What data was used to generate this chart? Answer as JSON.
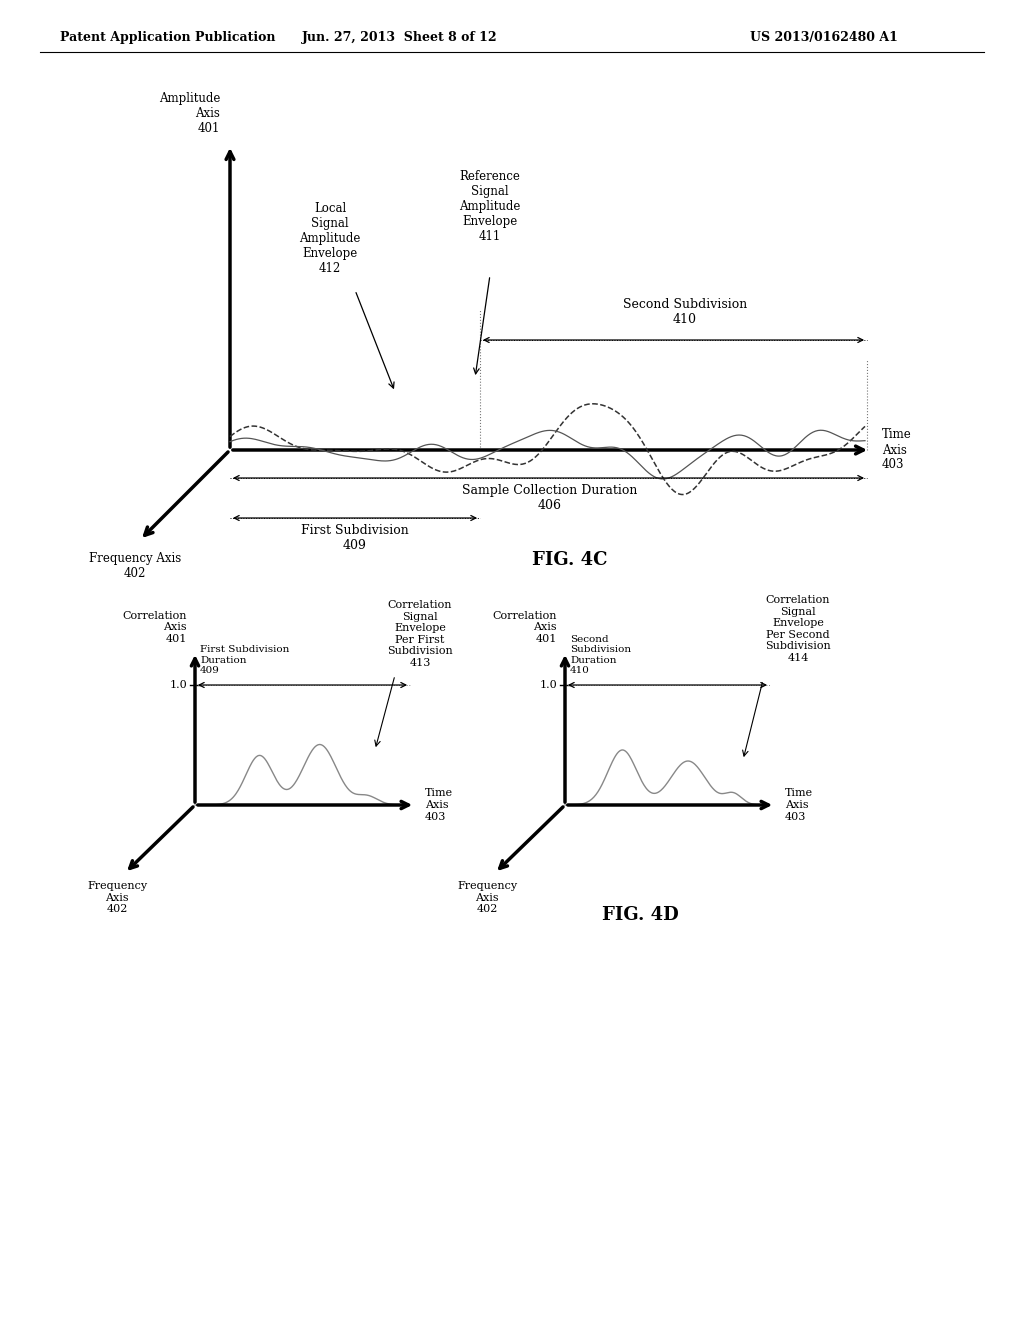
{
  "header_left": "Patent Application Publication",
  "header_center": "Jun. 27, 2013  Sheet 8 of 12",
  "header_right": "US 2013/0162480 A1",
  "fig4c_label": "FIG. 4C",
  "fig4d_label": "FIG. 4D",
  "bg_color": "#ffffff"
}
